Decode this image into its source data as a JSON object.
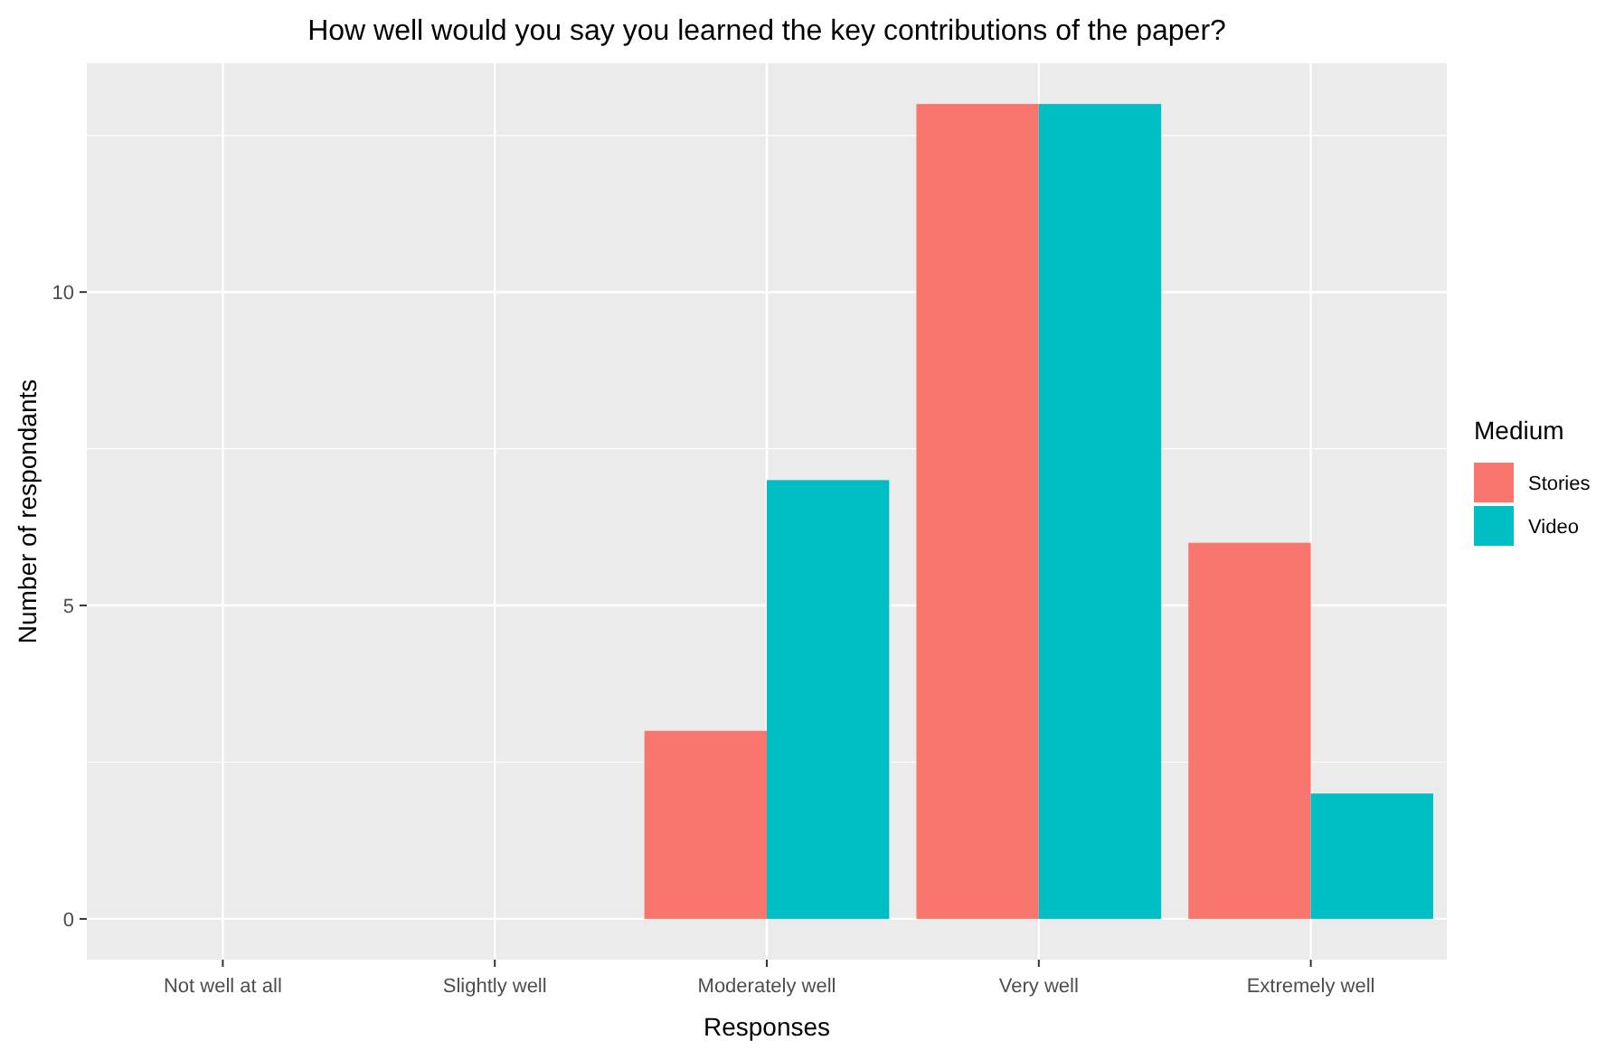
{
  "chart_data": {
    "type": "bar",
    "title": "How well would you say you learned the key contributions of the paper?",
    "xlabel": "Responses",
    "ylabel": "Number of respondants",
    "legend_title": "Medium",
    "categories": [
      "Not well at all",
      "Slightly well",
      "Moderately well",
      "Very well",
      "Extremely well"
    ],
    "series": [
      {
        "name": "Stories",
        "color": "#f8766d",
        "values": [
          0,
          0,
          3,
          13,
          6
        ]
      },
      {
        "name": "Video",
        "color": "#00bfc4",
        "values": [
          0,
          0,
          7,
          13,
          2
        ]
      }
    ],
    "ylim": [
      -0.65,
      13.65
    ],
    "yticks": [
      0,
      5,
      10
    ],
    "grid": true,
    "legend": "right"
  }
}
